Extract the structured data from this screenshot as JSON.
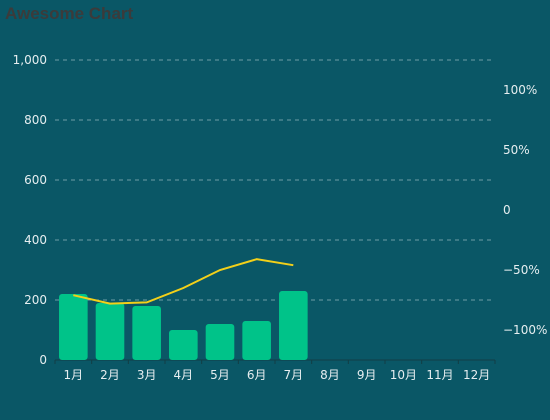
{
  "chart_data": {
    "type": "bar",
    "title": "Awesome Chart",
    "categories": [
      "1月",
      "2月",
      "3月",
      "4月",
      "5月",
      "6月",
      "7月",
      "8月",
      "9月",
      "10月",
      "11月",
      "12月"
    ],
    "series": [
      {
        "type": "bar",
        "axis": "left",
        "values": [
          220,
          190,
          180,
          100,
          120,
          130,
          230,
          null,
          null,
          null,
          null,
          null
        ]
      },
      {
        "type": "line",
        "axis": "right",
        "values": [
          -71,
          -78,
          -77,
          -65,
          -50,
          -41,
          -46,
          null,
          null,
          null,
          null,
          null
        ]
      }
    ],
    "y_left": {
      "ylim": [
        0,
        1000
      ],
      "ticks": [
        0,
        200,
        400,
        600,
        800,
        1000
      ],
      "tick_labels": [
        "0",
        "200",
        "400",
        "600",
        "800",
        "1,000"
      ]
    },
    "y_right": {
      "ylim": [
        -125,
        125
      ],
      "ticks": [
        -100,
        -50,
        0,
        50,
        100
      ],
      "tick_labels": [
        "−100%",
        "−50%",
        "0",
        "50%",
        "100%"
      ]
    },
    "grid": true,
    "colors": {
      "bar": "#00c389",
      "line": "#f3d019",
      "background": "#0a5766",
      "axis": "#123e45"
    }
  }
}
